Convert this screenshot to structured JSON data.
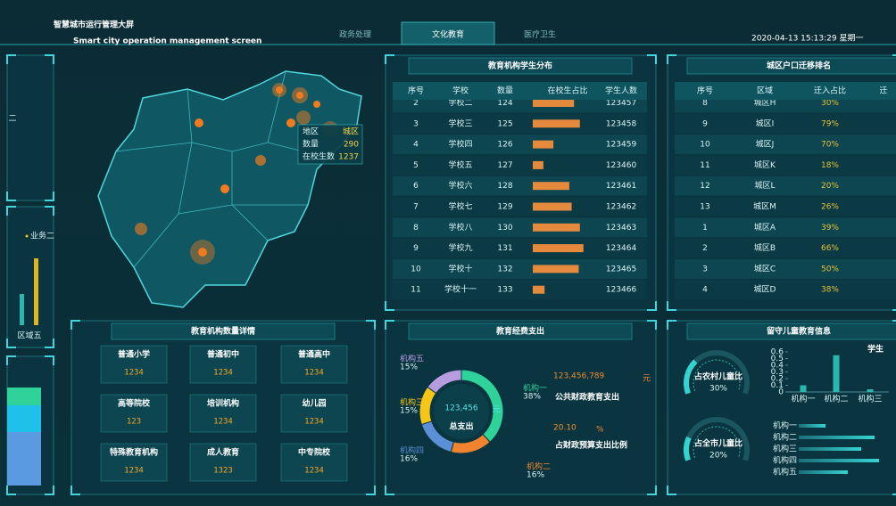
{
  "header": {
    "title": "智慧城市运行管理大屏",
    "subtitle": "Smart city operation management screen",
    "tabs": [
      "政务处理",
      "文化教育",
      "医疗卫生"
    ],
    "active_tab": 1,
    "datetime": "2020-04-13 15:13:29 星期一"
  },
  "map": {
    "popup": [
      [
        "地区",
        "城区"
      ],
      [
        "数量",
        "290"
      ],
      [
        "在校生数",
        "1237"
      ]
    ]
  },
  "side_panels": {
    "top_label": "二",
    "legend": "业务二",
    "category": "区域五"
  },
  "school_table": {
    "title": "教育机构学生分布",
    "columns": [
      "序号",
      "学校",
      "数量",
      "在校生占比",
      "学生人数"
    ],
    "rows": [
      {
        "no": "2",
        "name": "学校二",
        "count": "124",
        "share": 70,
        "students": "123457"
      },
      {
        "no": "3",
        "name": "学校三",
        "count": "125",
        "share": 80,
        "students": "123458"
      },
      {
        "no": "4",
        "name": "学校四",
        "count": "126",
        "share": 35,
        "students": "123459"
      },
      {
        "no": "5",
        "name": "学校五",
        "count": "127",
        "share": 18,
        "students": "123460"
      },
      {
        "no": "6",
        "name": "学校六",
        "count": "128",
        "share": 62,
        "students": "123461"
      },
      {
        "no": "7",
        "name": "学校七",
        "count": "129",
        "share": 66,
        "students": "123462"
      },
      {
        "no": "8",
        "name": "学校八",
        "count": "130",
        "share": 80,
        "students": "123463"
      },
      {
        "no": "9",
        "name": "学校九",
        "count": "131",
        "share": 86,
        "students": "123464"
      },
      {
        "no": "10",
        "name": "学校十",
        "count": "132",
        "share": 78,
        "students": "123465"
      },
      {
        "no": "11",
        "name": "学校十一",
        "count": "133",
        "share": 20,
        "students": "123466"
      }
    ]
  },
  "migration_table": {
    "title": "城区户口迁移排名",
    "columns": [
      "序号",
      "区域",
      "迁入占比",
      "迁"
    ],
    "rows": [
      [
        "8",
        "城区H",
        "30%"
      ],
      [
        "9",
        "城区I",
        "79%"
      ],
      [
        "10",
        "城区J",
        "70%"
      ],
      [
        "11",
        "城区K",
        "18%"
      ],
      [
        "12",
        "城区L",
        "20%"
      ],
      [
        "13",
        "城区M",
        "26%"
      ],
      [
        "1",
        "城区A",
        "39%"
      ],
      [
        "2",
        "城区B",
        "66%"
      ],
      [
        "3",
        "城区C",
        "50%"
      ],
      [
        "4",
        "城区D",
        "38%"
      ]
    ]
  },
  "institutions": {
    "title": "教育机构数量详情",
    "items": [
      {
        "name": "普通小学",
        "value": "1234"
      },
      {
        "name": "普通初中",
        "value": "1234"
      },
      {
        "name": "普通高中",
        "value": "1234"
      },
      {
        "name": "高等院校",
        "value": "123"
      },
      {
        "name": "培训机构",
        "value": "1234"
      },
      {
        "name": "幼儿园",
        "value": "1234"
      },
      {
        "name": "特殊教育机构",
        "value": "1234"
      },
      {
        "name": "成人教育",
        "value": "1323"
      },
      {
        "name": "中专院校",
        "value": "1234"
      }
    ]
  },
  "expense": {
    "title": "教育经费支出",
    "chart_data": {
      "type": "donut",
      "categories": [
        "机构一",
        "机构二",
        "机构四",
        "机构三",
        "机构五"
      ],
      "values": [
        38,
        16,
        16,
        15,
        15
      ],
      "value_labels": [
        "38%",
        "16%",
        "16%",
        "15%",
        "15%"
      ],
      "colors": [
        "#2fd39a",
        "#f0842e",
        "#5b8fd6",
        "#f5c518",
        "#b79de0"
      ]
    },
    "total": "123,456",
    "total_unit": "元",
    "total_label": "总支出",
    "public": "123,456,789",
    "public_unit": "元",
    "public_label": "公共财政教育支出",
    "ratio": "20.10",
    "ratio_unit": "%",
    "ratio_label": "占财政预算支出比例"
  },
  "children": {
    "title": "留守儿童教育信息",
    "gauges": [
      {
        "label": "占农村儿童比",
        "value": 30,
        "value_label": "30%"
      },
      {
        "label": "占全市儿童比",
        "value": 20,
        "value_label": "20%"
      }
    ],
    "bar_chart": {
      "type": "bar",
      "legend": "学生",
      "categories": [
        "机构一",
        "机构二",
        "机构三"
      ],
      "values": [
        0.1,
        0.55,
        0.04
      ],
      "ylim": [
        0,
        0.6
      ],
      "yticks": [
        0,
        0.1,
        0.2,
        0.3,
        0.4,
        0.5,
        0.6
      ],
      "color": "#2bb7b0"
    },
    "hbar_chart": {
      "type": "hbar",
      "categories": [
        "机构一",
        "机构二",
        "机构三",
        "机构四",
        "机构五"
      ],
      "values": [
        0.3,
        0.85,
        0.7,
        0.9,
        0.55
      ],
      "xlim": [
        0,
        1
      ],
      "color": "#2bb7b0"
    }
  }
}
